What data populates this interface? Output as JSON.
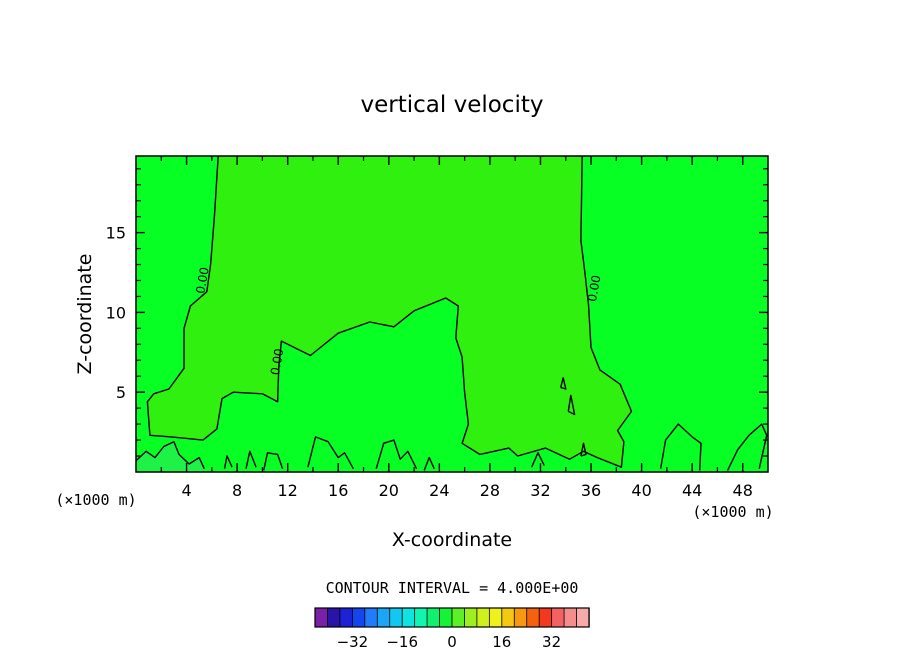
{
  "chart_data": {
    "type": "contour",
    "title": "vertical velocity",
    "xlabel": "X-coordinate",
    "ylabel": "Z-coordinate",
    "x_unit_label": "(×1000 m)",
    "x_unit_label_right": "(×1000 m)",
    "xlim": [
      0,
      50
    ],
    "ylim": [
      0,
      19.8
    ],
    "x_ticks": [
      4,
      8,
      12,
      16,
      20,
      24,
      28,
      32,
      36,
      40,
      44,
      48
    ],
    "y_ticks": [
      5,
      10,
      15
    ],
    "x_tick_labels": [
      "4",
      "8",
      "12",
      "16",
      "20",
      "24",
      "28",
      "32",
      "36",
      "40",
      "44",
      "48"
    ],
    "y_tick_labels": [
      "5",
      "10",
      "15"
    ],
    "contour_interval_text": "CONTOUR INTERVAL = 4.000E+00",
    "contour_labels": [
      {
        "text": "0.00",
        "x": 5.3,
        "y": 12.0
      },
      {
        "text": "0.00",
        "x": 11.2,
        "y": 6.9
      },
      {
        "text": "0.00",
        "x": 36.3,
        "y": 11.5
      }
    ],
    "zero_contours": [
      [
        [
          6.5,
          19.8
        ],
        [
          6.2,
          16
        ],
        [
          5.9,
          13
        ],
        [
          5.6,
          11.3
        ],
        [
          4.3,
          10.4
        ],
        [
          3.8,
          9.0
        ],
        [
          3.8,
          6.5
        ],
        [
          2.6,
          5.2
        ],
        [
          1.4,
          4.9
        ],
        [
          0.9,
          4.4
        ],
        [
          1.1,
          2.3
        ],
        [
          2.8,
          2.2
        ],
        [
          5.3,
          2.0
        ],
        [
          6.4,
          2.7
        ],
        [
          6.8,
          4.6
        ],
        [
          7.7,
          5.0
        ],
        [
          10.0,
          4.9
        ],
        [
          11.2,
          4.4
        ],
        [
          11.3,
          6.6
        ],
        [
          11.5,
          8.2
        ],
        [
          13.8,
          7.3
        ],
        [
          16.0,
          8.7
        ],
        [
          18.5,
          9.4
        ],
        [
          20.4,
          9.1
        ],
        [
          22.0,
          10.1
        ],
        [
          24.5,
          10.9
        ],
        [
          25.5,
          10.4
        ],
        [
          25.3,
          8.4
        ],
        [
          25.8,
          7.2
        ],
        [
          26.0,
          5.0
        ],
        [
          26.3,
          3.0
        ],
        [
          25.8,
          1.8
        ],
        [
          27.2,
          1.1
        ],
        [
          29.5,
          1.5
        ],
        [
          30.2,
          1.0
        ],
        [
          32.4,
          1.5
        ],
        [
          34.3,
          0.8
        ],
        [
          35.4,
          1.3
        ],
        [
          36.5,
          0.9
        ],
        [
          38.4,
          0.3
        ],
        [
          38.6,
          1.9
        ],
        [
          38.1,
          2.6
        ],
        [
          39.2,
          3.8
        ],
        [
          38.3,
          5.5
        ],
        [
          36.7,
          6.4
        ],
        [
          36.0,
          7.8
        ],
        [
          35.8,
          10.5
        ],
        [
          35.5,
          12.6
        ],
        [
          35.2,
          14.5
        ],
        [
          35.3,
          19.8
        ]
      ],
      [
        [
          0.0,
          0.7
        ],
        [
          0.8,
          1.3
        ],
        [
          1.5,
          0.9
        ],
        [
          2.2,
          1.6
        ],
        [
          3.0,
          1.9
        ],
        [
          3.4,
          1.1
        ],
        [
          4.2,
          0.5
        ],
        [
          5.0,
          0.9
        ],
        [
          5.4,
          0.2
        ]
      ],
      [
        [
          10.1,
          0.1
        ],
        [
          10.4,
          1.2
        ],
        [
          11.2,
          1.1
        ],
        [
          11.6,
          0.2
        ]
      ],
      [
        [
          13.6,
          0.3
        ],
        [
          14.2,
          2.2
        ],
        [
          15.2,
          1.9
        ],
        [
          16.0,
          0.9
        ],
        [
          16.5,
          1.2
        ],
        [
          17.2,
          0.2
        ]
      ],
      [
        [
          19.0,
          0.2
        ],
        [
          19.6,
          1.8
        ],
        [
          20.4,
          2.0
        ],
        [
          20.9,
          0.8
        ],
        [
          21.5,
          1.3
        ],
        [
          22.2,
          0.2
        ]
      ],
      [
        [
          41.5,
          0.2
        ],
        [
          41.9,
          2.0
        ],
        [
          42.9,
          3.0
        ],
        [
          44.0,
          2.2
        ],
        [
          44.7,
          1.8
        ],
        [
          44.6,
          0.1
        ]
      ],
      [
        [
          46.8,
          0.1
        ],
        [
          47.6,
          1.4
        ],
        [
          48.5,
          2.3
        ],
        [
          49.5,
          3.0
        ],
        [
          49.9,
          2.3
        ],
        [
          49.3,
          0.2
        ]
      ],
      [
        [
          7.0,
          0.2
        ],
        [
          7.2,
          1.0
        ],
        [
          7.6,
          0.3
        ]
      ],
      [
        [
          8.7,
          0.2
        ],
        [
          9.0,
          1.3
        ],
        [
          9.5,
          0.3
        ]
      ],
      [
        [
          22.8,
          0.1
        ],
        [
          23.2,
          0.9
        ],
        [
          23.6,
          0.2
        ]
      ],
      [
        [
          31.3,
          0.3
        ],
        [
          31.8,
          1.2
        ],
        [
          32.3,
          0.4
        ]
      ],
      [
        [
          34.2,
          3.8
        ],
        [
          34.4,
          4.8
        ],
        [
          34.7,
          3.6
        ],
        [
          34.2,
          3.8
        ]
      ],
      [
        [
          33.6,
          5.3
        ],
        [
          33.8,
          5.9
        ],
        [
          34.0,
          5.2
        ],
        [
          33.6,
          5.3
        ]
      ],
      [
        [
          35.2,
          1.0
        ],
        [
          35.4,
          1.8
        ],
        [
          35.6,
          1.1
        ],
        [
          35.2,
          1.0
        ]
      ]
    ],
    "colorbar": {
      "ticks": [
        "−32",
        "−16",
        "0",
        "16",
        "32"
      ],
      "colors": [
        "#7a1fa8",
        "#2a14a8",
        "#1d22d6",
        "#1545ee",
        "#1f7dfb",
        "#18a6f5",
        "#13c8ee",
        "#10e4e0",
        "#10f5b0",
        "#10f070",
        "#16f336",
        "#5ef026",
        "#9cf020",
        "#d0f01c",
        "#f0f01a",
        "#f5c814",
        "#f59a10",
        "#f5620e",
        "#f2381d",
        "#f36262",
        "#f68d8d",
        "#f8aaaa"
      ]
    },
    "colors": {
      "field_main": "#08ff24",
      "field_light": "#2ff00e",
      "field_negative": "#1ef247"
    }
  }
}
